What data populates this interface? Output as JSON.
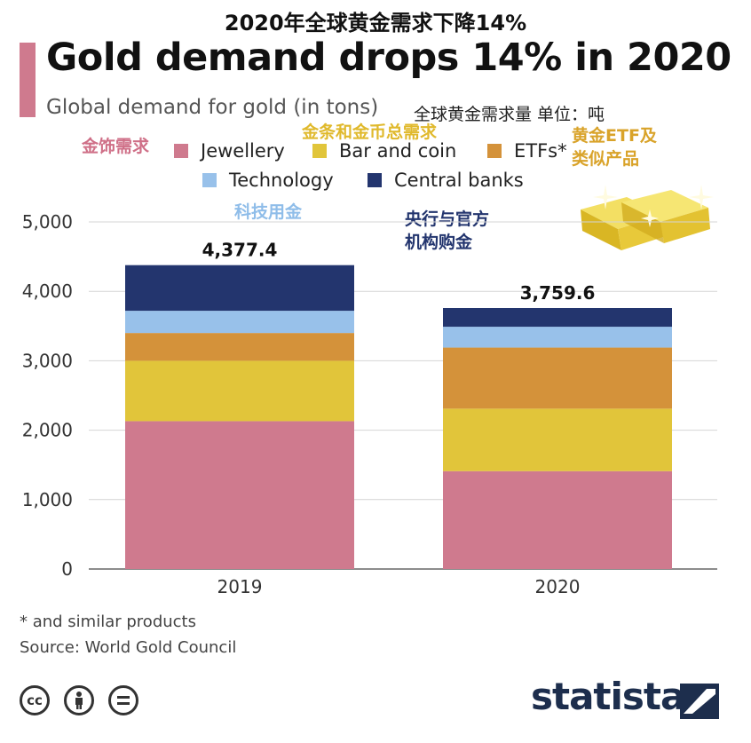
{
  "header": {
    "cn_title": "2020年全球黄金需求下降14%",
    "title": "Gold demand drops 14% in 2020",
    "subtitle": "Global demand for gold (in tons)",
    "subtitle_cn": "全球黄金需求量 单位：吨"
  },
  "legend": {
    "items": [
      {
        "label": "Jewellery",
        "color": "#cf7a8e"
      },
      {
        "label": "Bar and coin",
        "color": "#e1c53a"
      },
      {
        "label": "ETFs*",
        "color": "#d4923a"
      },
      {
        "label": "Technology",
        "color": "#98c1ea"
      },
      {
        "label": "Central banks",
        "color": "#23356e"
      }
    ]
  },
  "annotations_cn": {
    "jewellery": "金饰需求",
    "bar_coin": "金条和金币总需求",
    "etfs_line1": "黄金ETF及",
    "etfs_line2": "类似产品",
    "technology": "科技用金",
    "central_line1": "央行与官方",
    "central_line2": "机构购金"
  },
  "chart_data": {
    "type": "bar",
    "stacked": true,
    "categories": [
      "2019",
      "2020"
    ],
    "series": [
      {
        "name": "Jewellery",
        "color": "#cf7a8e",
        "values": [
          2130,
          1410
        ]
      },
      {
        "name": "Bar and coin",
        "color": "#e1c53a",
        "values": [
          870,
          900
        ]
      },
      {
        "name": "ETFs*",
        "color": "#d4923a",
        "values": [
          400,
          880
        ]
      },
      {
        "name": "Technology",
        "color": "#98c1ea",
        "values": [
          320,
          300
        ]
      },
      {
        "name": "Central banks",
        "color": "#23356e",
        "values": [
          657.4,
          269.6
        ]
      }
    ],
    "totals": [
      "4,377.4",
      "3,759.6"
    ],
    "y_ticks": [
      "0",
      "1,000",
      "2,000",
      "3,000",
      "4,000",
      "5,000"
    ],
    "ylim": [
      0,
      5000
    ],
    "grid": true
  },
  "footer": {
    "footnote": "* and similar products",
    "source": "Source: World Gold Council",
    "logo": "statista"
  },
  "icons": [
    "cc-icon",
    "person-icon",
    "equal-icon",
    "statista-logo-icon",
    "gold-bars-icon"
  ]
}
